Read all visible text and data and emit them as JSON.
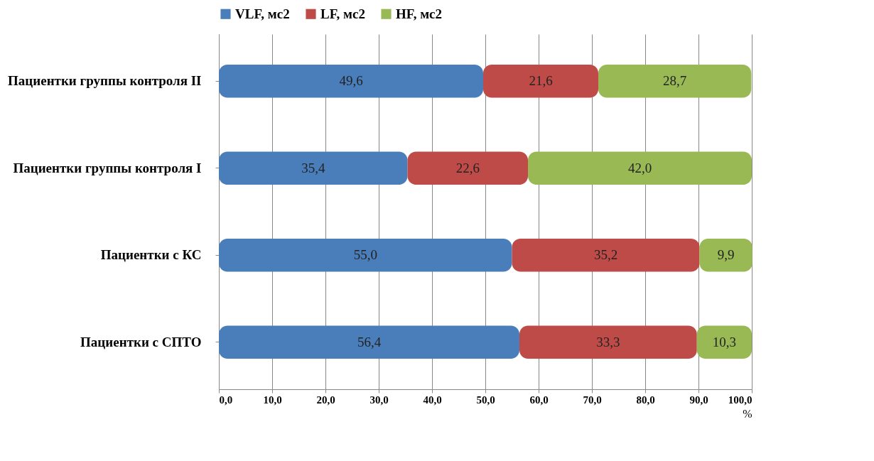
{
  "chart_data": {
    "type": "bar",
    "orientation": "horizontal",
    "stacked": true,
    "legend": "top",
    "grid": "x",
    "xlabel": "%",
    "categories": [
      "Пациентки группы контроля II",
      "Пациентки группы контроля I",
      "Пациентки с КС",
      "Пациентки с СПТО"
    ],
    "series": [
      {
        "name": "VLF, мс2",
        "color": "#4a7ebb",
        "values": [
          49.6,
          35.4,
          55.0,
          56.4
        ],
        "value_labels": [
          "49,6",
          "35,4",
          "55,0",
          "56,4"
        ]
      },
      {
        "name": "LF, мс2",
        "color": "#be4b48",
        "values": [
          21.6,
          22.6,
          35.2,
          33.3
        ],
        "value_labels": [
          "21,6",
          "22,6",
          "35,2",
          "33,3"
        ]
      },
      {
        "name": "HF, мс2",
        "color": "#98b954",
        "values": [
          28.7,
          42.0,
          9.9,
          10.3
        ],
        "value_labels": [
          "28,7",
          "42,0",
          "9,9",
          "10,3"
        ]
      }
    ],
    "xlim": [
      0,
      100
    ],
    "xticks": [
      {
        "value": 0,
        "label": "0,0"
      },
      {
        "value": 10,
        "label": "10,0"
      },
      {
        "value": 20,
        "label": "20,0"
      },
      {
        "value": 30,
        "label": "30,0"
      },
      {
        "value": 40,
        "label": "40,0"
      },
      {
        "value": 50,
        "label": "50,0"
      },
      {
        "value": 60,
        "label": "60,0"
      },
      {
        "value": 70,
        "label": "70,0"
      },
      {
        "value": 80,
        "label": "80,0"
      },
      {
        "value": 90,
        "label": "90,0"
      },
      {
        "value": 100,
        "label": "100,0"
      }
    ]
  }
}
